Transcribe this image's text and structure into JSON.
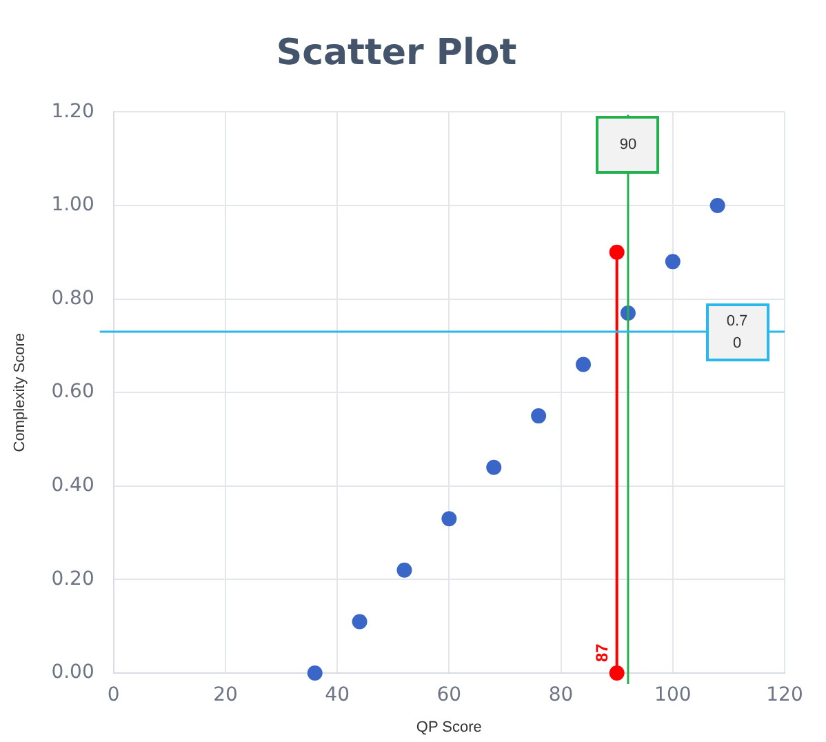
{
  "chart_data": {
    "type": "scatter",
    "title": "Scatter Plot",
    "xlabel": "QP Score",
    "ylabel": "Complexity Score",
    "xlim": [
      0,
      120
    ],
    "xticks": [
      0,
      20,
      40,
      60,
      80,
      100,
      120
    ],
    "ylim": [
      0,
      1.2
    ],
    "yticks": [
      {
        "value": 0,
        "label": "0.00"
      },
      {
        "value": 0.2,
        "label": "0.20"
      },
      {
        "value": 0.4,
        "label": "0.40"
      },
      {
        "value": 0.6,
        "label": "0.60"
      },
      {
        "value": 0.8,
        "label": "0.80"
      },
      {
        "value": 1,
        "label": "1.00"
      },
      {
        "value": 1.2,
        "label": "1.20"
      }
    ],
    "grid": true,
    "marker": "circle",
    "series": [
      {
        "color": "#3a66c8",
        "x": [
          36,
          44,
          52,
          60,
          68,
          76,
          84,
          92,
          100,
          108
        ],
        "values": [
          0,
          0.11,
          0.22,
          0.33,
          0.44,
          0.55,
          0.66,
          0.77,
          0.88,
          1.0
        ]
      },
      {
        "type": "line",
        "color": "#ff0000",
        "x": [
          90,
          90
        ],
        "values": [
          0,
          0.9
        ]
      }
    ],
    "ref_lines": [
      {
        "axis": "x",
        "value": 92,
        "color": "#22b14c"
      },
      {
        "axis": "y",
        "value": 0.73,
        "color": "#2ab8ec"
      }
    ],
    "annotations": [
      {
        "text": "90",
        "x": 92,
        "y": 1.13
      },
      {
        "text": "0.70",
        "x": 111.5,
        "y": 0.73
      },
      {
        "text": "87",
        "x": 90,
        "y": 0
      }
    ]
  }
}
